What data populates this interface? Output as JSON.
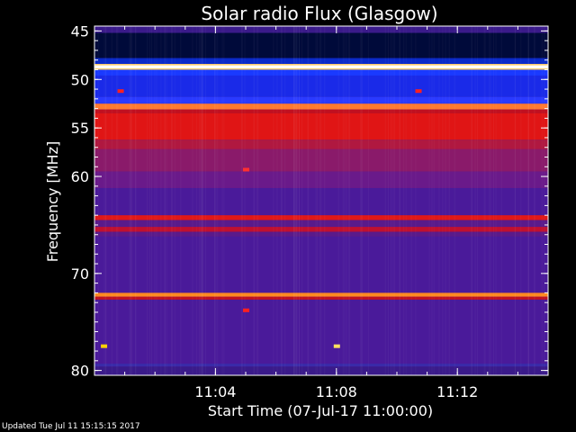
{
  "chart_data": {
    "type": "heatmap",
    "title": "Solar radio Flux (Glasgow)",
    "xlabel": "Start Time (07-Jul-17 11:00:00)",
    "ylabel": "Frequency [MHz]",
    "x_unit": "minutes after 11:00:00",
    "xlim": [
      0,
      15
    ],
    "ylim": [
      44.5,
      80.5
    ],
    "x_ticks": [
      {
        "value": 4,
        "label": "11:04"
      },
      {
        "value": 8,
        "label": "11:08"
      },
      {
        "value": 12,
        "label": "11:12"
      }
    ],
    "y_ticks": [
      {
        "value": 45,
        "label": "45"
      },
      {
        "value": 50,
        "label": "50"
      },
      {
        "value": 55,
        "label": "55"
      },
      {
        "value": 60,
        "label": "60"
      },
      {
        "value": 70,
        "label": "70"
      },
      {
        "value": 80,
        "label": "80"
      }
    ],
    "background_color": "#4a1a9a",
    "frequency_bands": [
      {
        "f0": 44.5,
        "f1": 45.2,
        "color": "#3a1a8a"
      },
      {
        "f0": 45.2,
        "f1": 47.8,
        "color": "#000a3a"
      },
      {
        "f0": 47.8,
        "f1": 48.4,
        "color": "#0a2ac8"
      },
      {
        "f0": 48.4,
        "f1": 49.0,
        "color": "#ffd070"
      },
      {
        "f0": 48.55,
        "f1": 48.85,
        "color": "#ffffff"
      },
      {
        "f0": 49.0,
        "f1": 49.6,
        "color": "#1a3aff"
      },
      {
        "f0": 49.6,
        "f1": 51.8,
        "color": "#1a2ae8"
      },
      {
        "f0": 51.8,
        "f1": 52.5,
        "color": "#2a3aff"
      },
      {
        "f0": 52.5,
        "f1": 53.1,
        "color": "#ff7a30"
      },
      {
        "f0": 53.1,
        "f1": 53.5,
        "color": "#c01020"
      },
      {
        "f0": 53.5,
        "f1": 56.2,
        "color": "#e01515"
      },
      {
        "f0": 56.2,
        "f1": 57.2,
        "color": "#b01840"
      },
      {
        "f0": 57.2,
        "f1": 59.5,
        "color": "#8a1a6a"
      },
      {
        "f0": 59.5,
        "f1": 61.2,
        "color": "#6a1a8a"
      },
      {
        "f0": 61.2,
        "f1": 64.0,
        "color": "#4a1a9a"
      },
      {
        "f0": 64.0,
        "f1": 64.5,
        "color": "#e01818"
      },
      {
        "f0": 64.5,
        "f1": 65.2,
        "color": "#5a1a8a"
      },
      {
        "f0": 65.2,
        "f1": 65.7,
        "color": "#c01030"
      },
      {
        "f0": 65.7,
        "f1": 66.2,
        "color": "#5a1a8a"
      },
      {
        "f0": 66.2,
        "f1": 72.0,
        "color": "#4a1a9a"
      },
      {
        "f0": 72.0,
        "f1": 72.4,
        "color": "#ff8a20"
      },
      {
        "f0": 72.4,
        "f1": 72.7,
        "color": "#c01020"
      },
      {
        "f0": 72.7,
        "f1": 79.3,
        "color": "#4a1a9a"
      },
      {
        "f0": 79.3,
        "f1": 79.6,
        "color": "#3a2aa8"
      },
      {
        "f0": 79.6,
        "f1": 80.5,
        "color": "#3a1a8a"
      }
    ],
    "spots": [
      {
        "t": 0.85,
        "f": 51.2,
        "color": "#ff2020"
      },
      {
        "t": 10.7,
        "f": 51.2,
        "color": "#ff2020"
      },
      {
        "t": 5.0,
        "f": 59.3,
        "color": "#ff3030"
      },
      {
        "t": 5.0,
        "f": 73.8,
        "color": "#ff2020"
      },
      {
        "t": 0.3,
        "f": 77.5,
        "color": "#ffd000"
      },
      {
        "t": 8.0,
        "f": 77.5,
        "color": "#ffe060"
      }
    ]
  },
  "footer": "Updated Tue Jul 11 15:15:15 2017"
}
